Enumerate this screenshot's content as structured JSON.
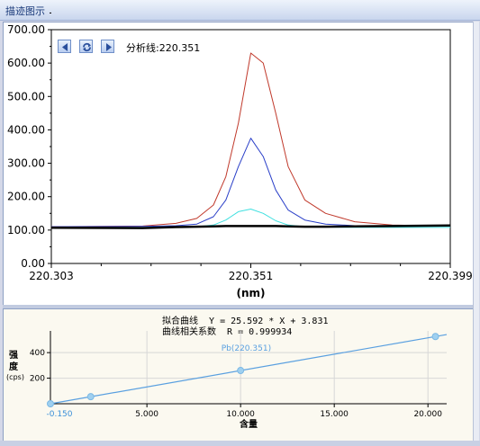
{
  "window": {
    "title": "描迹图示"
  },
  "spectrum": {
    "analysis_line_label": "分析线:220.351",
    "y_ticks": [
      "700.00",
      "600.00",
      "500.00",
      "400.00",
      "300.00",
      "200.00",
      "100.00",
      "0.00"
    ],
    "x_ticks": [
      "220.303",
      "220.351",
      "220.399"
    ],
    "x_unit": "(nm)",
    "nav": {
      "prev": "prev-icon",
      "refresh": "refresh-icon",
      "next": "next-icon"
    }
  },
  "calibration": {
    "fit_line1": "拟合曲线  Y = 25.592 * X + 3.831",
    "fit_line2": "曲线相关系数  R = 0.999934",
    "series_label": "Pb(220.351)",
    "y_label_chars": [
      "强",
      "度"
    ],
    "y_unit": "(cps)",
    "y_ticks": [
      "400",
      "200"
    ],
    "x_ticks": [
      "-0.150",
      "5.000",
      "10.000",
      "15.000",
      "20.000"
    ],
    "x_label": "含量"
  },
  "chart_data": [
    {
      "type": "line",
      "title": "",
      "xlabel": "(nm)",
      "ylabel": "",
      "xlim": [
        220.303,
        220.399
      ],
      "ylim": [
        0,
        700
      ],
      "grid": false,
      "x": [
        220.303,
        220.325,
        220.333,
        220.338,
        220.342,
        220.345,
        220.348,
        220.351,
        220.354,
        220.357,
        220.36,
        220.364,
        220.369,
        220.376,
        220.385,
        220.399
      ],
      "series": [
        {
          "color": "#c0392b",
          "values": [
            110,
            112,
            120,
            135,
            175,
            260,
            420,
            630,
            600,
            450,
            290,
            190,
            150,
            125,
            115,
            112
          ]
        },
        {
          "color": "#2a3fc8",
          "values": [
            110,
            111,
            113,
            118,
            140,
            190,
            290,
            375,
            320,
            220,
            160,
            130,
            118,
            113,
            112,
            112
          ]
        },
        {
          "color": "#3fe0e0",
          "values": [
            108,
            108,
            109,
            110,
            115,
            130,
            155,
            163,
            150,
            128,
            115,
            110,
            109,
            108,
            108,
            108
          ]
        },
        {
          "color": "#000000",
          "values": [
            107,
            106,
            109,
            110,
            111,
            112,
            112,
            112,
            112,
            112,
            111,
            110,
            110,
            111,
            112,
            114
          ]
        }
      ]
    },
    {
      "type": "scatter",
      "title": "拟合曲线  Y = 25.592 * X + 3.831",
      "xlabel": "含量",
      "ylabel": "强度 (cps)",
      "xlim": [
        -0.15,
        21
      ],
      "ylim": [
        0,
        570
      ],
      "grid": true,
      "series": [
        {
          "name": "Pb(220.351)",
          "color": "#5aa0e0",
          "points": [
            [
              -0.15,
              0
            ],
            [
              2.0,
              55
            ],
            [
              10.0,
              260
            ],
            [
              20.4,
              526
            ]
          ],
          "fit": {
            "slope": 25.592,
            "intercept": 3.831
          }
        }
      ]
    }
  ]
}
